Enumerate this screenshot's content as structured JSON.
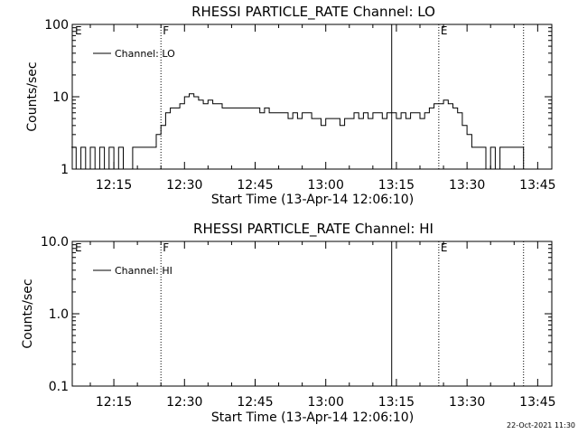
{
  "footer": {
    "timestamp": "22-Oct-2021 11:30"
  },
  "chart_data": [
    {
      "type": "line",
      "title": "RHESSI PARTICLE_RATE Channel: LO",
      "xlabel": "Start Time (13-Apr-14 12:06:10)",
      "ylabel": "Counts/sec",
      "y_scale": "log",
      "ylim": [
        1,
        100
      ],
      "y_ticks": [
        "1",
        "10",
        "100"
      ],
      "x_ticks": [
        "12:15",
        "12:30",
        "12:45",
        "13:00",
        "13:15",
        "13:30",
        "13:45"
      ],
      "legend": {
        "label": "Channel: LO",
        "placement": "top-left"
      },
      "markers": [
        {
          "label": "E",
          "time": "12:06",
          "style": "none"
        },
        {
          "label": "F",
          "time": "12:25",
          "style": "dotted"
        },
        {
          "label": "",
          "time": "13:14",
          "style": "solid"
        },
        {
          "label": "E",
          "time": "13:24",
          "style": "dotted"
        },
        {
          "label": "",
          "time": "13:42",
          "style": "dotted"
        }
      ],
      "series": [
        {
          "name": "Channel: LO",
          "x": [
            "12:06",
            "12:07",
            "12:08",
            "12:09",
            "12:10",
            "12:11",
            "12:12",
            "12:13",
            "12:14",
            "12:15",
            "12:16",
            "12:17",
            "12:18",
            "12:19",
            "12:20",
            "12:21",
            "12:22",
            "12:23",
            "12:24",
            "12:25",
            "12:26",
            "12:27",
            "12:28",
            "12:29",
            "12:30",
            "12:31",
            "12:32",
            "12:33",
            "12:34",
            "12:35",
            "12:36",
            "12:37",
            "12:38",
            "12:39",
            "12:40",
            "12:41",
            "12:42",
            "12:43",
            "12:44",
            "12:45",
            "12:46",
            "12:47",
            "12:48",
            "12:49",
            "12:50",
            "12:51",
            "12:52",
            "12:53",
            "12:54",
            "12:55",
            "12:56",
            "12:57",
            "12:58",
            "12:59",
            "13:00",
            "13:01",
            "13:02",
            "13:03",
            "13:04",
            "13:05",
            "13:06",
            "13:07",
            "13:08",
            "13:09",
            "13:10",
            "13:11",
            "13:12",
            "13:13",
            "13:14",
            "13:15",
            "13:16",
            "13:17",
            "13:18",
            "13:19",
            "13:20",
            "13:21",
            "13:22",
            "13:23",
            "13:24",
            "13:25",
            "13:26",
            "13:27",
            "13:28",
            "13:29",
            "13:30",
            "13:31",
            "13:32",
            "13:33",
            "13:34",
            "13:35",
            "13:36",
            "13:37",
            "13:38",
            "13:39",
            "13:40",
            "13:41",
            "13:42"
          ],
          "y": [
            2,
            1,
            2,
            1,
            2,
            1,
            2,
            1,
            2,
            1,
            2,
            1,
            1,
            2,
            2,
            2,
            2,
            2,
            3,
            4,
            6,
            7,
            7,
            8,
            10,
            11,
            10,
            9,
            8,
            9,
            8,
            8,
            7,
            7,
            7,
            7,
            7,
            7,
            7,
            7,
            6,
            7,
            6,
            6,
            6,
            6,
            5,
            6,
            5,
            6,
            6,
            5,
            5,
            4,
            5,
            5,
            5,
            4,
            5,
            5,
            6,
            5,
            6,
            5,
            6,
            6,
            5,
            6,
            6,
            5,
            6,
            5,
            6,
            6,
            5,
            6,
            7,
            8,
            8,
            9,
            8,
            7,
            6,
            4,
            3,
            2,
            2,
            2,
            1,
            2,
            1,
            2,
            2,
            2,
            2,
            2,
            1
          ]
        }
      ]
    },
    {
      "type": "line",
      "title": "RHESSI PARTICLE_RATE Channel: HI",
      "xlabel": "Start Time (13-Apr-14 12:06:10)",
      "ylabel": "Counts/sec",
      "y_scale": "log",
      "ylim": [
        0.1,
        10
      ],
      "y_ticks": [
        "0.1",
        "1.0",
        "10.0"
      ],
      "x_ticks": [
        "12:15",
        "12:30",
        "12:45",
        "13:00",
        "13:15",
        "13:30",
        "13:45"
      ],
      "legend": {
        "label": "Channel: HI",
        "placement": "top-left"
      },
      "markers": [
        {
          "label": "E",
          "time": "12:06",
          "style": "none"
        },
        {
          "label": "F",
          "time": "12:25",
          "style": "dotted"
        },
        {
          "label": "",
          "time": "13:14",
          "style": "solid"
        },
        {
          "label": "E",
          "time": "13:24",
          "style": "dotted"
        },
        {
          "label": "",
          "time": "13:42",
          "style": "dotted"
        }
      ],
      "series": [
        {
          "name": "Channel: HI",
          "x": [],
          "y": []
        }
      ]
    }
  ]
}
